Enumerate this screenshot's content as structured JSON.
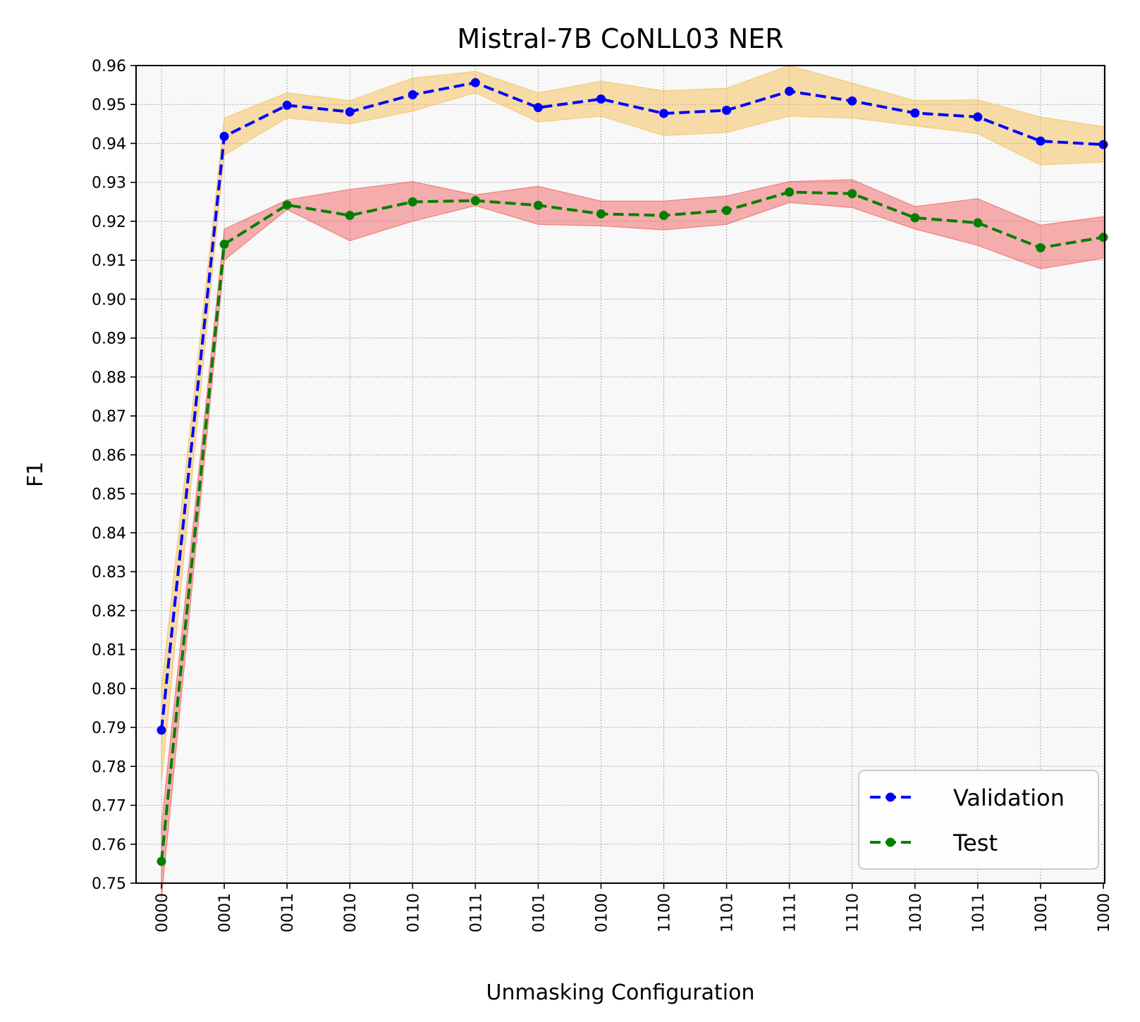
{
  "chart_data": {
    "type": "line",
    "title": "Mistral-7B CoNLL03 NER",
    "xlabel": "Unmasking Configuration",
    "ylabel": "F1",
    "ylim": [
      0.75,
      0.96
    ],
    "yticks": [
      "0.75",
      "0.76",
      "0.77",
      "0.78",
      "0.79",
      "0.80",
      "0.81",
      "0.82",
      "0.83",
      "0.84",
      "0.85",
      "0.86",
      "0.87",
      "0.88",
      "0.89",
      "0.90",
      "0.91",
      "0.92",
      "0.93",
      "0.94",
      "0.95",
      "0.96"
    ],
    "grid": true,
    "legend_position": "bottom-right",
    "categories": [
      "0000",
      "0001",
      "0011",
      "0010",
      "0110",
      "0111",
      "0101",
      "0100",
      "1100",
      "1101",
      "1111",
      "1110",
      "1010",
      "1011",
      "1001",
      "1000"
    ],
    "series": [
      {
        "name": "Validation",
        "color": "#0000ff",
        "band_color": "#f5b942",
        "values": [
          0.7893,
          0.9418,
          0.9498,
          0.9481,
          0.9525,
          0.9556,
          0.9492,
          0.9514,
          0.9477,
          0.9485,
          0.9534,
          0.9509,
          0.9478,
          0.9468,
          0.9406,
          0.9397
        ],
        "upper": [
          0.8,
          0.9465,
          0.953,
          0.951,
          0.9568,
          0.9585,
          0.953,
          0.956,
          0.9535,
          0.9542,
          0.96,
          0.9555,
          0.951,
          0.9512,
          0.9468,
          0.9443
        ],
        "lower": [
          0.776,
          0.937,
          0.9465,
          0.945,
          0.9483,
          0.953,
          0.9455,
          0.947,
          0.942,
          0.9428,
          0.947,
          0.9465,
          0.9445,
          0.9425,
          0.9345,
          0.9352
        ]
      },
      {
        "name": "Test",
        "color": "#008000",
        "band_color": "#f05050",
        "values": [
          0.7556,
          0.9141,
          0.9242,
          0.9215,
          0.925,
          0.9253,
          0.9241,
          0.9219,
          0.9215,
          0.9228,
          0.9275,
          0.9271,
          0.9209,
          0.9196,
          0.9132,
          0.9159
        ],
        "upper": [
          0.765,
          0.918,
          0.9255,
          0.9282,
          0.9302,
          0.9268,
          0.929,
          0.9252,
          0.9252,
          0.9265,
          0.9302,
          0.9307,
          0.9238,
          0.9258,
          0.919,
          0.9212
        ],
        "lower": [
          0.746,
          0.91,
          0.923,
          0.915,
          0.92,
          0.924,
          0.9192,
          0.9188,
          0.9178,
          0.9192,
          0.9248,
          0.9235,
          0.918,
          0.9138,
          0.9078,
          0.9105
        ]
      }
    ]
  }
}
